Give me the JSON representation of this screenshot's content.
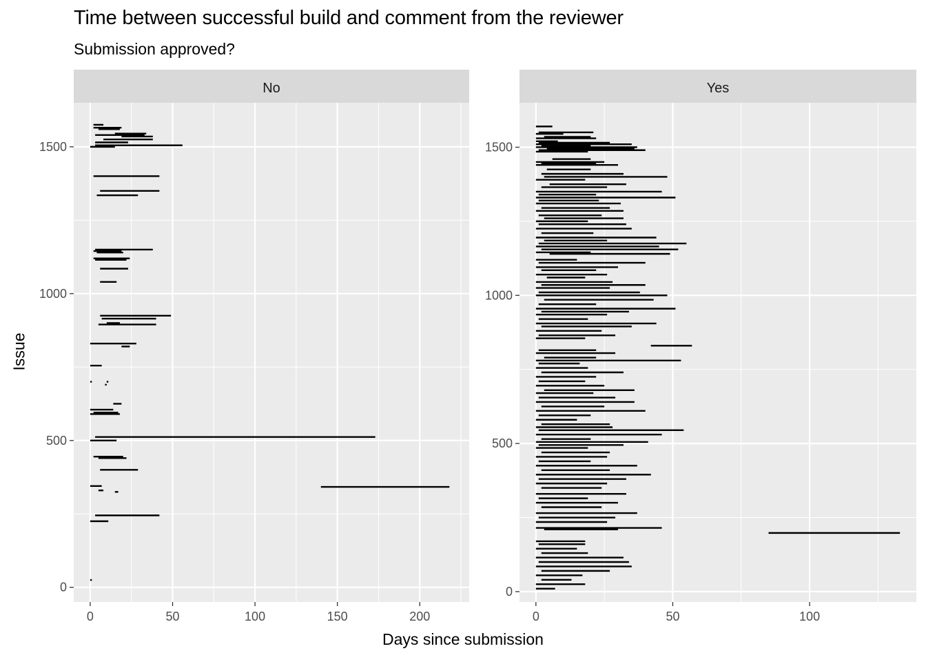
{
  "chart_data": {
    "type": "segment",
    "title": "Time between successful build and comment from the reviewer",
    "subtitle": "Submission approved?",
    "xlabel": "Days since submission",
    "ylabel": "Issue",
    "grid": true,
    "facets": [
      {
        "label": "No",
        "xlim": [
          -10,
          230
        ],
        "ylim": [
          -50,
          1650
        ],
        "xticks": [
          0,
          50,
          100,
          150,
          200
        ],
        "yticks": [
          0,
          500,
          1000,
          1500
        ],
        "segments": [
          [
            2,
            1575,
            8,
            1575
          ],
          [
            2,
            1565,
            19,
            1565
          ],
          [
            5,
            1560,
            18,
            1560
          ],
          [
            15,
            1545,
            34,
            1545
          ],
          [
            3,
            1540,
            33,
            1540
          ],
          [
            19,
            1535,
            38,
            1535
          ],
          [
            8,
            1525,
            38,
            1525
          ],
          [
            3,
            1515,
            23,
            1515
          ],
          [
            3,
            1505,
            56,
            1505
          ],
          [
            0,
            1500,
            15,
            1500
          ],
          [
            2,
            1400,
            42,
            1400
          ],
          [
            6,
            1350,
            42,
            1350
          ],
          [
            4,
            1335,
            29,
            1335
          ],
          [
            3,
            1150,
            38,
            1150
          ],
          [
            2,
            1145,
            19,
            1145
          ],
          [
            4,
            1140,
            20,
            1140
          ],
          [
            2,
            1120,
            24,
            1120
          ],
          [
            3,
            1115,
            22,
            1115
          ],
          [
            6,
            1085,
            23,
            1085
          ],
          [
            6,
            1040,
            16,
            1040
          ],
          [
            6,
            925,
            49,
            925
          ],
          [
            7,
            915,
            40,
            915
          ],
          [
            10,
            900,
            18,
            900
          ],
          [
            5,
            895,
            40,
            895
          ],
          [
            0,
            830,
            28,
            830
          ],
          [
            19,
            820,
            24,
            820
          ],
          [
            0,
            755,
            7,
            755
          ],
          [
            0,
            700,
            1,
            700
          ],
          [
            10,
            700,
            11,
            700
          ],
          [
            9,
            690,
            10,
            690
          ],
          [
            14,
            625,
            19,
            625
          ],
          [
            0,
            605,
            14,
            605
          ],
          [
            2,
            595,
            17,
            595
          ],
          [
            0,
            590,
            18,
            590
          ],
          [
            3,
            512,
            173,
            512
          ],
          [
            0,
            500,
            16,
            500
          ],
          [
            2,
            445,
            20,
            445
          ],
          [
            5,
            440,
            22,
            440
          ],
          [
            6,
            400,
            29,
            400
          ],
          [
            0,
            345,
            7,
            345
          ],
          [
            140,
            342,
            218,
            342
          ],
          [
            5,
            330,
            8,
            330
          ],
          [
            15,
            325,
            17,
            325
          ],
          [
            3,
            245,
            42,
            245
          ],
          [
            0,
            225,
            11,
            225
          ],
          [
            0,
            25,
            1,
            25
          ]
        ]
      },
      {
        "label": "Yes",
        "xlim": [
          -6,
          139
        ],
        "ylim": [
          -35,
          1650
        ],
        "xticks": [
          0,
          50,
          100
        ],
        "yticks": [
          0,
          500,
          1000,
          1500
        ],
        "segments": [
          [
            0,
            1570,
            6,
            1570
          ],
          [
            1,
            1550,
            21,
            1550
          ],
          [
            0,
            1545,
            10,
            1545
          ],
          [
            3,
            1535,
            20,
            1535
          ],
          [
            0,
            1530,
            22,
            1530
          ],
          [
            0,
            1520,
            8,
            1520
          ],
          [
            1,
            1515,
            27,
            1515
          ],
          [
            0,
            1510,
            35,
            1510
          ],
          [
            2,
            1505,
            20,
            1505
          ],
          [
            0,
            1500,
            37,
            1500
          ],
          [
            4,
            1495,
            36,
            1495
          ],
          [
            1,
            1490,
            40,
            1490
          ],
          [
            0,
            1485,
            19,
            1485
          ],
          [
            6,
            1460,
            20,
            1460
          ],
          [
            0,
            1450,
            25,
            1450
          ],
          [
            2,
            1445,
            22,
            1445
          ],
          [
            0,
            1440,
            30,
            1440
          ],
          [
            4,
            1425,
            20,
            1425
          ],
          [
            2,
            1410,
            32,
            1410
          ],
          [
            3,
            1400,
            48,
            1400
          ],
          [
            0,
            1390,
            18,
            1390
          ],
          [
            5,
            1375,
            33,
            1375
          ],
          [
            2,
            1365,
            26,
            1365
          ],
          [
            0,
            1350,
            46,
            1350
          ],
          [
            1,
            1340,
            22,
            1340
          ],
          [
            0,
            1330,
            51,
            1330
          ],
          [
            1,
            1320,
            23,
            1320
          ],
          [
            0,
            1310,
            31,
            1310
          ],
          [
            2,
            1295,
            27,
            1295
          ],
          [
            0,
            1285,
            32,
            1285
          ],
          [
            1,
            1270,
            24,
            1270
          ],
          [
            3,
            1260,
            32,
            1260
          ],
          [
            0,
            1250,
            19,
            1250
          ],
          [
            1,
            1240,
            33,
            1240
          ],
          [
            0,
            1225,
            35,
            1225
          ],
          [
            2,
            1210,
            21,
            1210
          ],
          [
            0,
            1195,
            44,
            1195
          ],
          [
            3,
            1185,
            26,
            1185
          ],
          [
            1,
            1175,
            55,
            1175
          ],
          [
            0,
            1165,
            45,
            1165
          ],
          [
            2,
            1155,
            52,
            1155
          ],
          [
            0,
            1145,
            20,
            1145
          ],
          [
            5,
            1140,
            49,
            1140
          ],
          [
            0,
            1120,
            15,
            1120
          ],
          [
            1,
            1110,
            40,
            1110
          ],
          [
            0,
            1095,
            30,
            1095
          ],
          [
            2,
            1085,
            22,
            1085
          ],
          [
            0,
            1070,
            26,
            1070
          ],
          [
            4,
            1060,
            18,
            1060
          ],
          [
            0,
            1045,
            28,
            1045
          ],
          [
            2,
            1035,
            40,
            1035
          ],
          [
            0,
            1025,
            27,
            1025
          ],
          [
            1,
            1010,
            38,
            1010
          ],
          [
            0,
            1000,
            48,
            1000
          ],
          [
            3,
            985,
            43,
            985
          ],
          [
            1,
            970,
            22,
            970
          ],
          [
            0,
            955,
            51,
            955
          ],
          [
            2,
            945,
            34,
            945
          ],
          [
            0,
            935,
            26,
            935
          ],
          [
            1,
            920,
            19,
            920
          ],
          [
            0,
            905,
            44,
            905
          ],
          [
            2,
            895,
            35,
            895
          ],
          [
            0,
            880,
            24,
            880
          ],
          [
            1,
            865,
            29,
            865
          ],
          [
            0,
            855,
            18,
            855
          ],
          [
            42,
            830,
            57,
            830
          ],
          [
            1,
            815,
            22,
            815
          ],
          [
            0,
            805,
            29,
            805
          ],
          [
            3,
            790,
            22,
            790
          ],
          [
            0,
            780,
            53,
            780
          ],
          [
            1,
            770,
            16,
            770
          ],
          [
            0,
            755,
            19,
            755
          ],
          [
            2,
            740,
            32,
            740
          ],
          [
            0,
            725,
            22,
            725
          ],
          [
            1,
            710,
            18,
            710
          ],
          [
            0,
            695,
            25,
            695
          ],
          [
            3,
            680,
            36,
            680
          ],
          [
            0,
            670,
            21,
            670
          ],
          [
            1,
            655,
            29,
            655
          ],
          [
            0,
            640,
            36,
            640
          ],
          [
            2,
            625,
            25,
            625
          ],
          [
            0,
            610,
            40,
            610
          ],
          [
            1,
            595,
            20,
            595
          ],
          [
            0,
            580,
            15,
            580
          ],
          [
            2,
            565,
            27,
            565
          ],
          [
            0,
            555,
            28,
            555
          ],
          [
            1,
            545,
            54,
            545
          ],
          [
            0,
            530,
            46,
            530
          ],
          [
            2,
            515,
            20,
            515
          ],
          [
            0,
            505,
            41,
            505
          ],
          [
            1,
            495,
            32,
            495
          ],
          [
            0,
            485,
            19,
            485
          ],
          [
            2,
            470,
            27,
            470
          ],
          [
            0,
            455,
            26,
            455
          ],
          [
            1,
            440,
            20,
            440
          ],
          [
            0,
            425,
            37,
            425
          ],
          [
            2,
            410,
            27,
            410
          ],
          [
            0,
            395,
            42,
            395
          ],
          [
            1,
            380,
            33,
            380
          ],
          [
            0,
            365,
            26,
            365
          ],
          [
            2,
            350,
            24,
            350
          ],
          [
            0,
            330,
            33,
            330
          ],
          [
            1,
            315,
            19,
            315
          ],
          [
            0,
            300,
            30,
            300
          ],
          [
            2,
            285,
            24,
            285
          ],
          [
            0,
            265,
            37,
            265
          ],
          [
            1,
            250,
            29,
            250
          ],
          [
            0,
            235,
            26,
            235
          ],
          [
            0,
            215,
            46,
            215
          ],
          [
            3,
            210,
            30,
            210
          ],
          [
            85,
            198,
            133,
            198
          ],
          [
            0,
            170,
            18,
            170
          ],
          [
            1,
            160,
            18,
            160
          ],
          [
            0,
            145,
            15,
            145
          ],
          [
            2,
            130,
            19,
            130
          ],
          [
            0,
            115,
            32,
            115
          ],
          [
            1,
            100,
            34,
            100
          ],
          [
            0,
            85,
            35,
            85
          ],
          [
            2,
            70,
            27,
            70
          ],
          [
            0,
            55,
            17,
            55
          ],
          [
            2,
            40,
            13,
            40
          ],
          [
            0,
            25,
            18,
            25
          ],
          [
            0,
            10,
            7,
            10
          ]
        ]
      }
    ]
  }
}
